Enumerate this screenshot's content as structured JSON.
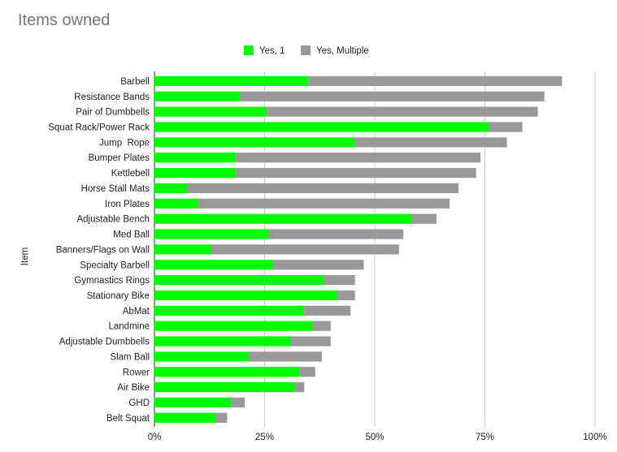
{
  "chart_data": {
    "type": "bar",
    "orientation": "horizontal",
    "stacked": true,
    "title": "Items owned",
    "xlabel": "",
    "ylabel": "Item",
    "xlim": [
      0,
      100
    ],
    "x_ticks": [
      "0%",
      "25%",
      "50%",
      "75%",
      "100%"
    ],
    "grid": true,
    "legend_position": "top",
    "categories": [
      "Barbell",
      "Resistance Bands",
      "Pair of Dumbbells",
      "Squat Rack/Power Rack",
      "Jump  Rope",
      "Bumper Plates",
      "Kettlebell",
      "Horse Stall Mats",
      "Iron Plates",
      "Adjustable Bench",
      "Med Ball",
      "Banners/Flags on Wall",
      "Specialty Barbell",
      "Gymnastics Rings",
      "Stationary Bike",
      "AbMat",
      "Landmine",
      "Adjustable Dumbbells",
      "Slam Ball",
      "Rower",
      "Air Bike",
      "GHD",
      "Belt Squat"
    ],
    "series": [
      {
        "name": "Yes, 1",
        "color": "#00ff00",
        "values": [
          35,
          19.5,
          25.5,
          76,
          45.5,
          18.5,
          18.5,
          7.5,
          10,
          58.5,
          26,
          13,
          27,
          38.5,
          41.5,
          34,
          36,
          31,
          21.5,
          33,
          32,
          17.5,
          14
        ]
      },
      {
        "name": "Yes, Multiple",
        "color": "#999999",
        "values": [
          57.5,
          69,
          61.5,
          7.5,
          34.5,
          55.5,
          54.5,
          61.5,
          57,
          5.5,
          30.5,
          42.5,
          20.5,
          7,
          4,
          10.5,
          4,
          9,
          16.5,
          3.5,
          2,
          3,
          2.5
        ]
      }
    ]
  },
  "colors": {
    "yes_1": "#00ff00",
    "yes_multiple": "#999999",
    "gridline": "#cccccc",
    "title": "#757575",
    "text": "#222222"
  }
}
